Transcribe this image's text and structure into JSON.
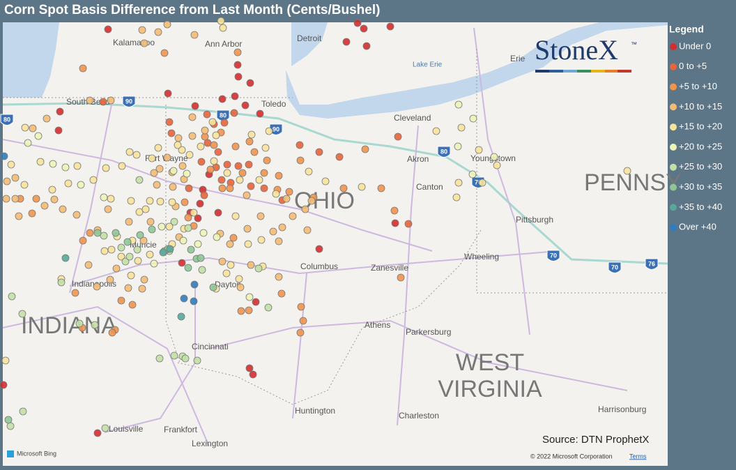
{
  "header": {
    "title": "Corn Spot Basis Difference from Last Month (Cents/Bushel)"
  },
  "legend": {
    "title": "Legend",
    "items": [
      {
        "label": "Under 0",
        "color": "#d42d2d"
      },
      {
        "label": "0 to +5",
        "color": "#e8643a"
      },
      {
        "label": "+5 to +10",
        "color": "#f0944e"
      },
      {
        "label": "+10 to +15",
        "color": "#f4bb74"
      },
      {
        "label": "+15 to +20",
        "color": "#f8e39a"
      },
      {
        "label": "+20 to +25",
        "color": "#eef3b6"
      },
      {
        "label": "+25 to +30",
        "color": "#c3e0a6"
      },
      {
        "label": "+30 to +35",
        "color": "#8ec795"
      },
      {
        "label": "+35 to +40",
        "color": "#58a89c"
      },
      {
        "label": "Over +40",
        "color": "#2f7dbd"
      }
    ]
  },
  "logo": {
    "text": "StoneX",
    "mark": "™"
  },
  "map": {
    "places": [
      "Kalamazoo",
      "Ann Arbor",
      "Detroit",
      "Lake Erie",
      "Erie",
      "South Bend",
      "Toledo",
      "Cleveland",
      "Fort Wayne",
      "Akron",
      "Youngstown",
      "Canton",
      "Muncie",
      "Pittsburgh",
      "Wheeling",
      "Columbus",
      "Zanesville",
      "Indianapolis",
      "Dayton",
      "Athens",
      "Parkersburg",
      "Cincinnati",
      "Huntington",
      "Charleston",
      "Harrisonburg",
      "Louisville",
      "Frankfort",
      "Lexington"
    ],
    "regions": [
      "PENNSY",
      "OHIO",
      "INDIANA",
      "WEST",
      "VIRGINIA"
    ],
    "highways": [
      "80",
      "90",
      "80",
      "90",
      "80",
      "76",
      "70",
      "70",
      "76"
    ]
  },
  "footer": {
    "source": "Source: DTN ProphetX",
    "copyright": "© 2022 Microsoft Corporation",
    "terms": "Terms",
    "bing": "Microsoft Bing"
  }
}
